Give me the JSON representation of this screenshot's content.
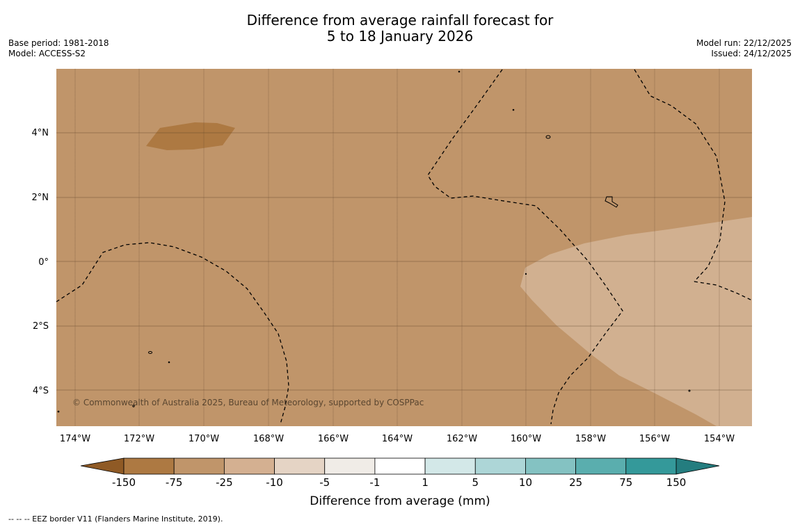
{
  "title": {
    "line1": "Difference from average rainfall forecast for",
    "line2": "5 to 18 January 2026"
  },
  "meta_left": {
    "base_period": "Base period: 1981-2018",
    "model": "Model: ACCESS-S2"
  },
  "meta_right": {
    "model_run": "Model run: 22/12/2025",
    "issued": "Issued: 24/12/2025"
  },
  "map": {
    "lon_labels": [
      "174°W",
      "172°W",
      "170°W",
      "168°W",
      "166°W",
      "164°W",
      "162°W",
      "160°W",
      "158°W",
      "156°W",
      "154°W"
    ],
    "lat_labels": [
      "4°N",
      "2°N",
      "0°",
      "2°S",
      "4°S"
    ],
    "copyright": "© Commonwealth of Australia 2025, Bureau of Meteorology, supported by COSPPac",
    "region_colors": {
      "background": "#c0956a",
      "strong_dry": "#ad7942",
      "light_dry": "#d1b090",
      "land_outline": "#000000",
      "grid": "#5a4028"
    }
  },
  "colorbar": {
    "ticks": [
      "-150",
      "-75",
      "-25",
      "-10",
      "-5",
      "-1",
      "1",
      "5",
      "10",
      "25",
      "75",
      "150"
    ],
    "colors": [
      "#ad7942",
      "#c0956a",
      "#d4b091",
      "#e5d4c5",
      "#f0ece7",
      "#ffffff",
      "#d3e8e8",
      "#add6d7",
      "#84c2c2",
      "#5aaeae",
      "#34999a"
    ],
    "extend_low": "#8f5a25",
    "extend_high": "#247d7f",
    "label": "Difference from average (mm)"
  },
  "footer": {
    "eez_note": "--  --  -- EEZ border V11 (Flanders Marine Institute, 2019)."
  }
}
